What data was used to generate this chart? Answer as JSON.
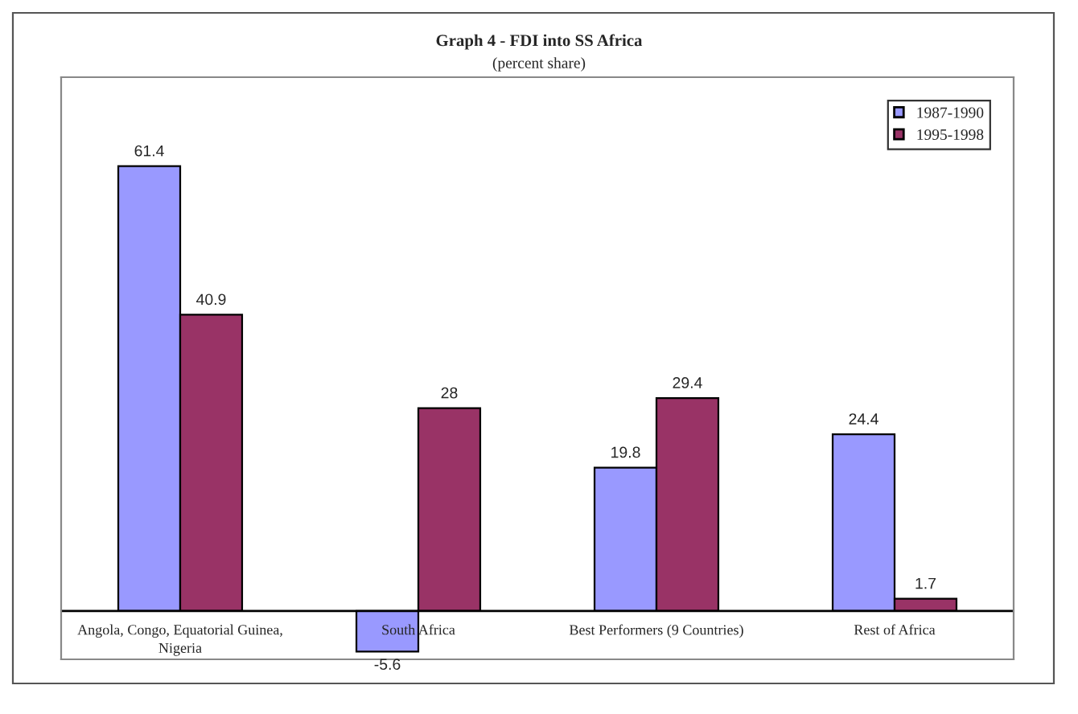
{
  "chart_data": {
    "type": "bar",
    "title": "Graph 4 - FDI into SS Africa",
    "subtitle": "(percent share)",
    "categories": [
      "Angola, Congo, Equatorial Guinea,\nNigeria",
      "South Africa",
      "Best Performers (9 Countries)",
      "Rest of Africa"
    ],
    "series": [
      {
        "name": "1987-1990",
        "color": "#9999ff",
        "values": [
          61.4,
          -5.6,
          19.8,
          24.4
        ]
      },
      {
        "name": "1995-1998",
        "color": "#993366",
        "values": [
          40.9,
          28,
          29.4,
          1.7
        ]
      }
    ],
    "data_labels": true,
    "legend": "top right"
  }
}
